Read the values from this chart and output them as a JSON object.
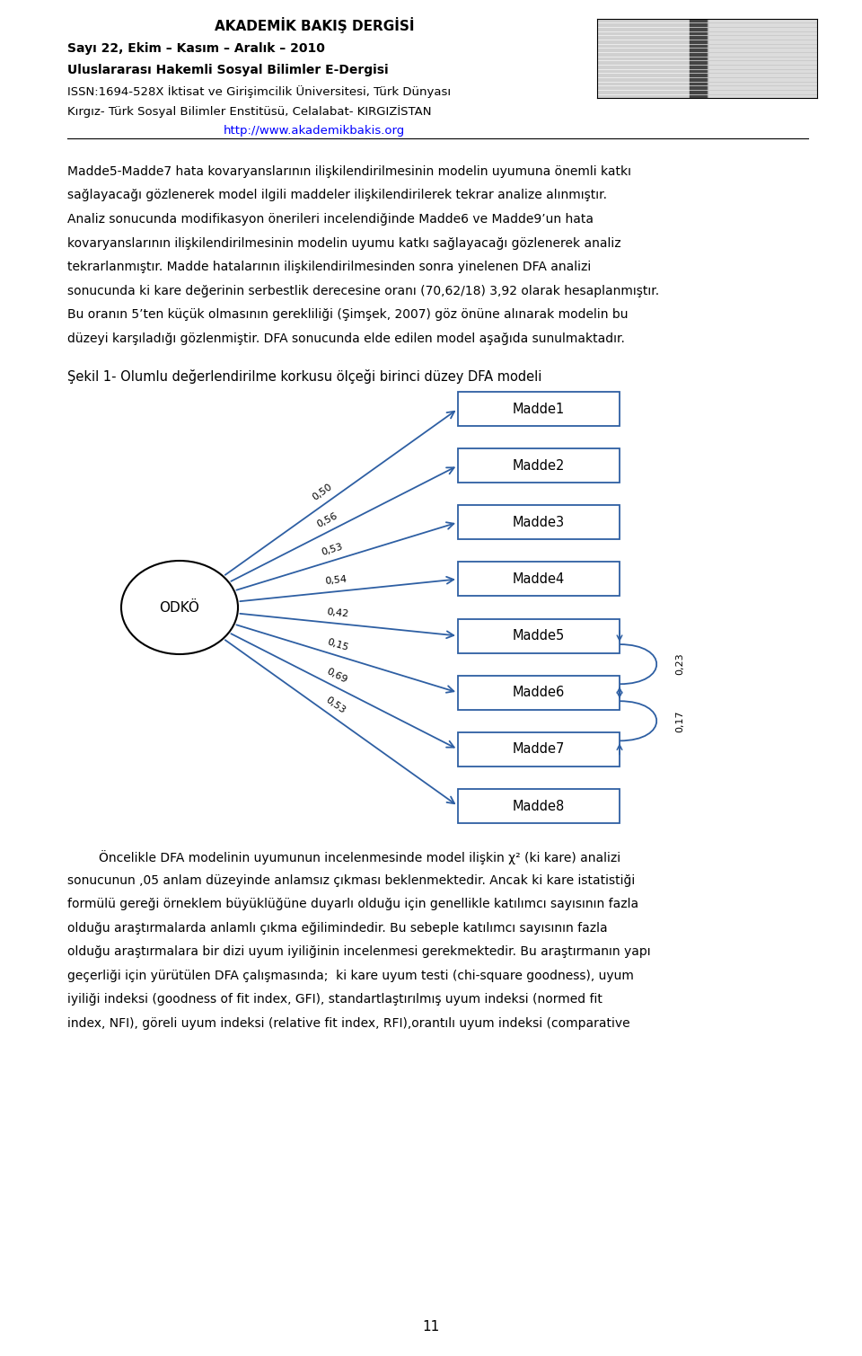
{
  "page_width": 9.6,
  "page_height": 15.09,
  "background_color": "#ffffff",
  "header": {
    "title": "AKADEMİK BAKIŞ DERGİSİ",
    "line2": "Sayı 22, Ekim – Kasım – Aralık – 2010",
    "line3": "Uluslararası Hakemli Sosyal Bilimler E-Dergisi",
    "line4": "ISSN:1694-528X İktisat ve Girişimcilik Üniversitesi, Türk Dünyası",
    "line5": "Kırgız- Türk Sosyal Bilimler Enstitüsü, Celalabat- KIRGIZİSTAN",
    "line6": "http://www.akademikbakis.org"
  },
  "body_paragraphs": [
    "        Madde5-Madde7 hata kovaryanslarının ilişkilendirilmesinin modelin uyumuna önemli katkı sağlayacağı gözlenerek model ilgili maddeler ilişkilendirilerek tekrar analize alınmıştır. Analiz sonucunda modifikasyon önerileri incelendiğinde Madde6 ve Madde9’un hata kovaryanslarının ilişkilendirilmesinin modelin uyumu katkı sağlayacağı gözlenerek analiz tekrarlanmıştır. Madde hatalarının ilişkilendirilmesinden sonra yinelenen DFA analizi sonucunda ki kare değerinin serbestlik derecesine oranı (70,62/18) 3,92 olarak hesaplanmıştır. Bu oranın 5’ten küçük olmasının gerekliliği (Şimşek, 2007) göz önüne alınarak modelin bu düzeyi karşıladığı gözlenmiştir. DFA sonucunda elde edilen model aşağıda sunulmaktadır."
  ],
  "figure_caption": "Şekil 1- Olumlu değerlendirilme korkusu ölçeği birinci düzey DFA modeli",
  "diagram": {
    "latent_var": "ODKÖ",
    "items": [
      "Madde1",
      "Madde2",
      "Madde3",
      "Madde4",
      "Madde5",
      "Madde6",
      "Madde7",
      "Madde8"
    ],
    "loadings": [
      "0,50",
      "0,56",
      "0,53",
      "0,54",
      "0,42",
      "0,15",
      "0,69",
      "0,53"
    ],
    "covariance_madde5_madde6": "0,23",
    "covariance_madde6_madde7": "0,17",
    "arrow_color": "#2E5FA3",
    "box_edge_color": "#2E5FA3"
  },
  "bottom_text_lines": [
    "        Öncelikle DFA modelinin uyumunun incelenmesinde model ilişkin χ² (ki kare) analizi",
    "sonucunun ,05 anlam düzeyinde anlamsız çıkması beklenmektedir. Ancak ki kare istatistiği",
    "formülü gereği örneklem büyüklüğüne duyarlı olduğu için genellikle katılımcı sayısının fazla",
    "olduğu araştırmalarda anlamlı çıkma eğilimindedir. Bu sebeple katılımcı sayısının fazla",
    "olduğu araştırmalara bir dizi uyum iyiliğinin incelenmesi gerekmektedir. Bu araştırmanın yapı",
    "geçerliği için yürütülen DFA çalışmasında;  ki kare uyum testi (chi-square goodness), uyum",
    "iyiliği indeksi (goodness of fit index, GFI), standartlaştırılmış uyum indeksi (normed fit",
    "index, NFI), göreli uyum indeksi (relative fit index, RFI),orantılı uyum indeksi (comparative"
  ],
  "page_number": "11"
}
